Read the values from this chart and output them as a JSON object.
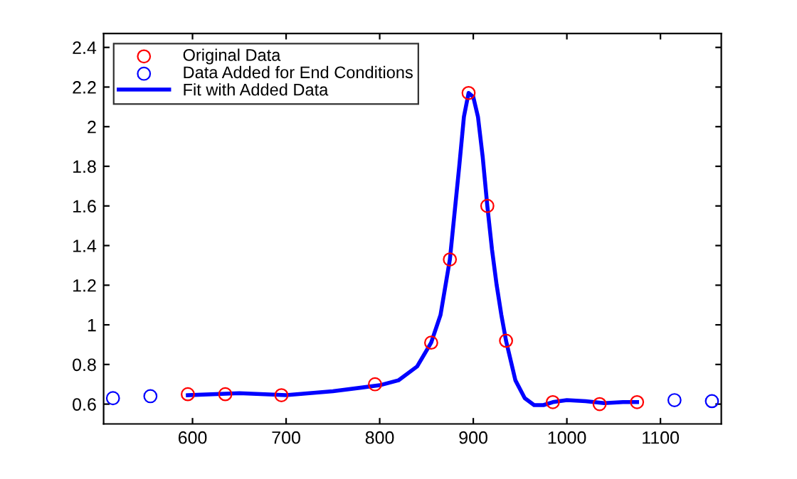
{
  "chart_data": {
    "type": "scatter",
    "xlim": [
      505,
      1165
    ],
    "ylim": [
      0.5,
      2.47
    ],
    "xticks": [
      600,
      700,
      800,
      900,
      1000,
      1100
    ],
    "yticks": [
      0.6,
      0.8,
      1,
      1.2,
      1.4,
      1.6,
      1.8,
      2,
      2.2,
      2.4
    ],
    "legend": "top left",
    "grid": false,
    "series": [
      {
        "name": "Original Data",
        "marker": "circle",
        "color": "#ff0000",
        "x": [
          595,
          635,
          695,
          795,
          855,
          875,
          895,
          915,
          935,
          985,
          1035,
          1075
        ],
        "values": [
          0.65,
          0.65,
          0.645,
          0.7,
          0.91,
          1.33,
          2.17,
          1.6,
          0.92,
          0.61,
          0.6,
          0.61
        ]
      },
      {
        "name": "Data Added for End Conditions",
        "marker": "circle",
        "color": "#0000ff",
        "x": [
          515,
          555,
          1115,
          1155
        ],
        "values": [
          0.63,
          0.64,
          0.62,
          0.615
        ]
      },
      {
        "name": "Fit with Added Data",
        "type": "line",
        "marker": "none",
        "color": "#0000ff",
        "line_style": "solid",
        "x": [
          595,
          650,
          700,
          750,
          800,
          820,
          840,
          855,
          865,
          875,
          885,
          890,
          895,
          900,
          905,
          910,
          915,
          920,
          925,
          930,
          935,
          945,
          955,
          965,
          975,
          985,
          1000,
          1020,
          1040,
          1060,
          1075
        ],
        "values": [
          0.645,
          0.655,
          0.645,
          0.665,
          0.695,
          0.72,
          0.79,
          0.91,
          1.05,
          1.33,
          1.8,
          2.05,
          2.17,
          2.15,
          2.05,
          1.85,
          1.6,
          1.38,
          1.2,
          1.05,
          0.92,
          0.72,
          0.63,
          0.595,
          0.595,
          0.61,
          0.62,
          0.615,
          0.605,
          0.61,
          0.61
        ]
      }
    ]
  }
}
